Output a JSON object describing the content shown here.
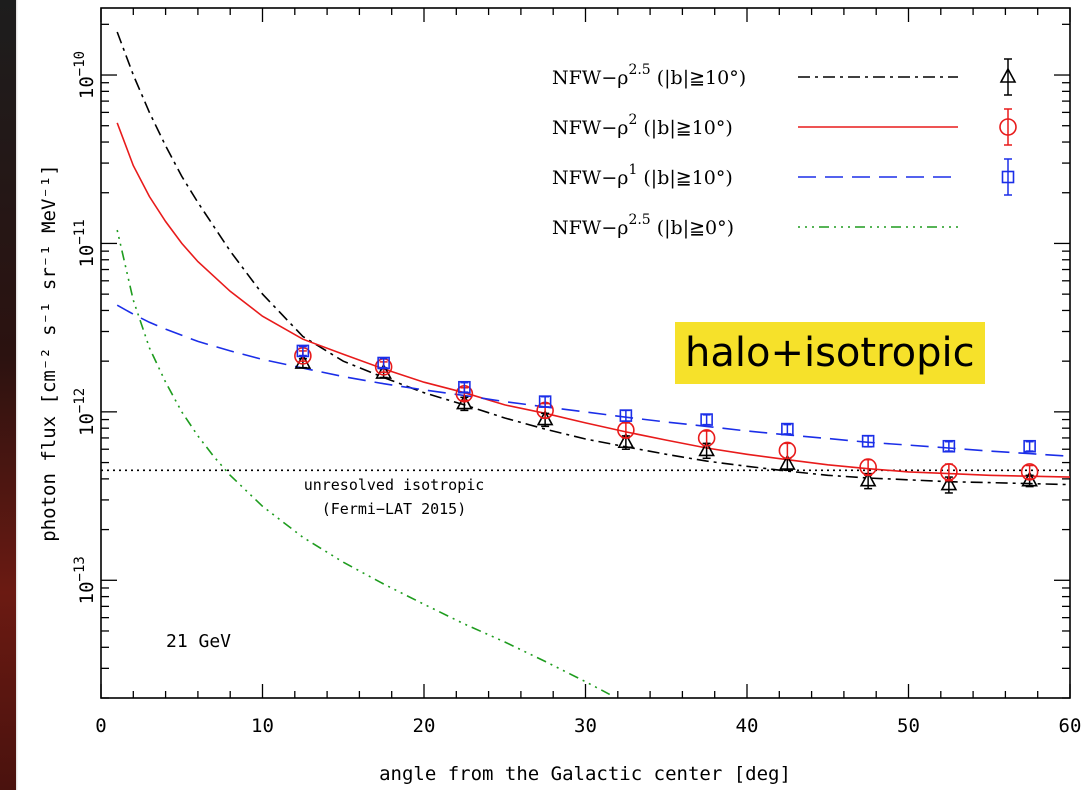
{
  "chart_data": {
    "type": "line",
    "xlabel": "angle from the Galactic center [deg]",
    "ylabel": "photon flux [cm⁻² s⁻¹ sr⁻¹ MeV⁻¹]",
    "xlim": [
      0,
      60
    ],
    "ylim": [
      2e-14,
      2.5e-10
    ],
    "yscale": "log",
    "x_ticks": [
      0,
      10,
      20,
      30,
      40,
      50,
      60
    ],
    "y_ticks": [
      {
        "value": 1e-13,
        "base": "10",
        "exp": "−13"
      },
      {
        "value": 1e-12,
        "base": "10",
        "exp": "−12"
      },
      {
        "value": 1e-11,
        "base": "10",
        "exp": "−11"
      },
      {
        "value": 1e-10,
        "base": "10",
        "exp": "−10"
      }
    ],
    "legend_position": "top-right",
    "series": [
      {
        "name": "NFW−ρ^2.5 (|b|≧10°)",
        "label_main": "NFW−ρ",
        "label_sup": "2.5",
        "label_tail": " (|b|≧10°)",
        "color": "#000000",
        "dash": "12 5 3 5",
        "marker": "triangle",
        "curve": {
          "x": [
            1,
            2,
            3,
            4,
            5,
            6,
            8,
            10,
            12.5,
            15,
            17.5,
            20,
            22.5,
            25,
            27.5,
            30,
            32.5,
            35,
            37.5,
            40,
            42.5,
            45,
            47.5,
            50,
            52.5,
            55,
            57.5,
            60
          ],
          "y": [
            1.8e-10,
            1e-10,
            6e-11,
            3.8e-11,
            2.5e-11,
            1.75e-11,
            9e-12,
            5e-12,
            2.8e-12,
            2e-12,
            1.6e-12,
            1.3e-12,
            1.1e-12,
            9.2e-13,
            7.9e-13,
            6.9e-13,
            6.2e-13,
            5.6e-13,
            5.1e-13,
            4.75e-13,
            4.45e-13,
            4.2e-13,
            4.05e-13,
            3.95e-13,
            3.85e-13,
            3.8e-13,
            3.75e-13,
            3.7e-13
          ]
        },
        "points": {
          "x": [
            12.5,
            17.5,
            22.5,
            27.5,
            32.5,
            37.5,
            42.5,
            47.5,
            52.5,
            57.5
          ],
          "y": [
            1.95e-12,
            1.7e-12,
            1.12e-12,
            9e-13,
            6.6e-13,
            5.9e-13,
            4.9e-13,
            3.9e-13,
            3.7e-13,
            3.9e-13
          ],
          "err_up": [
            1.2e-13,
            1e-13,
            1e-13,
            8e-14,
            6e-14,
            6e-14,
            4e-14,
            4e-14,
            4e-14,
            3e-14
          ],
          "err_down": [
            1.2e-13,
            1e-13,
            1e-13,
            8e-14,
            6e-14,
            6e-14,
            4e-14,
            4e-14,
            4e-14,
            3e-14
          ]
        }
      },
      {
        "name": "NFW−ρ^2 (|b|≧10°)",
        "label_main": "NFW−ρ",
        "label_sup": "2",
        "label_tail": " (|b|≧10°)",
        "color": "#e81b1b",
        "dash": "",
        "marker": "circle",
        "curve": {
          "x": [
            1,
            2,
            3,
            4,
            5,
            6,
            8,
            10,
            12.5,
            15,
            17.5,
            20,
            22.5,
            25,
            27.5,
            30,
            32.5,
            35,
            37.5,
            40,
            42.5,
            45,
            47.5,
            50,
            52.5,
            55,
            57.5,
            60
          ],
          "y": [
            5.2e-11,
            2.9e-11,
            1.9e-11,
            1.35e-11,
            1e-11,
            7.8e-12,
            5.2e-12,
            3.7e-12,
            2.7e-12,
            2.2e-12,
            1.8e-12,
            1.5e-12,
            1.3e-12,
            1.1e-12,
            9.8e-13,
            8.6e-13,
            7.6e-13,
            6.8e-13,
            6.1e-13,
            5.6e-13,
            5.2e-13,
            4.85e-13,
            4.6e-13,
            4.4e-13,
            4.3e-13,
            4.2e-13,
            4.15e-13,
            4.1e-13
          ]
        },
        "points": {
          "x": [
            12.5,
            17.5,
            22.5,
            27.5,
            32.5,
            37.5,
            42.5,
            47.5,
            52.5,
            57.5
          ],
          "y": [
            2.15e-12,
            1.85e-12,
            1.28e-12,
            1.02e-12,
            7.8e-13,
            7e-13,
            5.9e-13,
            4.7e-13,
            4.4e-13,
            4.4e-13
          ],
          "err_up": [
            1.5e-13,
            1.3e-13,
            1.1e-13,
            1e-13,
            8e-14,
            7e-14,
            6e-14,
            5e-14,
            5e-14,
            4e-14
          ],
          "err_down": [
            1.5e-13,
            1.3e-13,
            1.1e-13,
            1e-13,
            8e-14,
            7e-14,
            6e-14,
            5e-14,
            5e-14,
            4e-14
          ]
        }
      },
      {
        "name": "NFW−ρ^1 (|b|≧10°)",
        "label_main": "NFW−ρ",
        "label_sup": "1",
        "label_tail": " (|b|≧10°)",
        "color": "#1b2ee8",
        "dash": "18 9",
        "marker": "square",
        "curve": {
          "x": [
            1,
            2,
            3,
            4,
            5,
            6,
            8,
            10,
            12.5,
            15,
            17.5,
            20,
            22.5,
            25,
            27.5,
            30,
            32.5,
            35,
            37.5,
            40,
            42.5,
            45,
            47.5,
            50,
            52.5,
            55,
            57.5,
            60
          ],
          "y": [
            4.3e-12,
            3.8e-12,
            3.4e-12,
            3.1e-12,
            2.85e-12,
            2.62e-12,
            2.3e-12,
            2.05e-12,
            1.82e-12,
            1.62e-12,
            1.47e-12,
            1.35e-12,
            1.25e-12,
            1.15e-12,
            1.07e-12,
            1e-12,
            9.3e-13,
            8.7e-13,
            8.2e-13,
            7.7e-13,
            7.3e-13,
            6.95e-13,
            6.6e-13,
            6.35e-13,
            6.1e-13,
            5.85e-13,
            5.65e-13,
            5.45e-13
          ]
        },
        "points": {
          "x": [
            12.5,
            17.5,
            22.5,
            27.5,
            32.5,
            37.5,
            42.5,
            47.5,
            52.5,
            57.5
          ],
          "y": [
            2.3e-12,
            1.95e-12,
            1.4e-12,
            1.15e-12,
            9.5e-13,
            9e-13,
            7.9e-13,
            6.7e-13,
            6.25e-13,
            6.25e-13
          ],
          "err_up": [
            1.4e-13,
            1.2e-13,
            9e-14,
            8e-14,
            7e-14,
            6e-14,
            5e-14,
            5e-14,
            4e-14,
            4e-14
          ],
          "err_down": [
            1.4e-13,
            1.2e-13,
            9e-14,
            8e-14,
            7e-14,
            6e-14,
            5e-14,
            5e-14,
            4e-14,
            4e-14
          ]
        }
      },
      {
        "name": "NFW−ρ^2.5 (|b|≧0°)",
        "label_main": "NFW−ρ",
        "label_sup": "2.5",
        "label_tail": " (|b|≧0°)",
        "color": "#1e9c1e",
        "dash": "2 5 2 5 2 5 10 5",
        "marker": "none",
        "curve": {
          "x": [
            1,
            2,
            3,
            4,
            5,
            6,
            7,
            8,
            10,
            12.5,
            15,
            17.5,
            20,
            22.5,
            25,
            27.5,
            30,
            31.5
          ],
          "y": [
            1.2e-11,
            4.6e-12,
            2.4e-12,
            1.5e-12,
            1e-12,
            7.2e-13,
            5.4e-13,
            4.2e-13,
            2.75e-13,
            1.8e-13,
            1.28e-13,
            9.5e-14,
            7.2e-14,
            5.5e-14,
            4.3e-14,
            3.3e-14,
            2.5e-14,
            2.1e-14
          ]
        }
      }
    ],
    "reference_line": {
      "y": 4.5e-13,
      "label_line1": "unresolved isotropic",
      "label_line2": "(Fermi−LAT 2015)"
    },
    "energy_label": "21 GeV",
    "annotation": "halo+isotropic"
  }
}
